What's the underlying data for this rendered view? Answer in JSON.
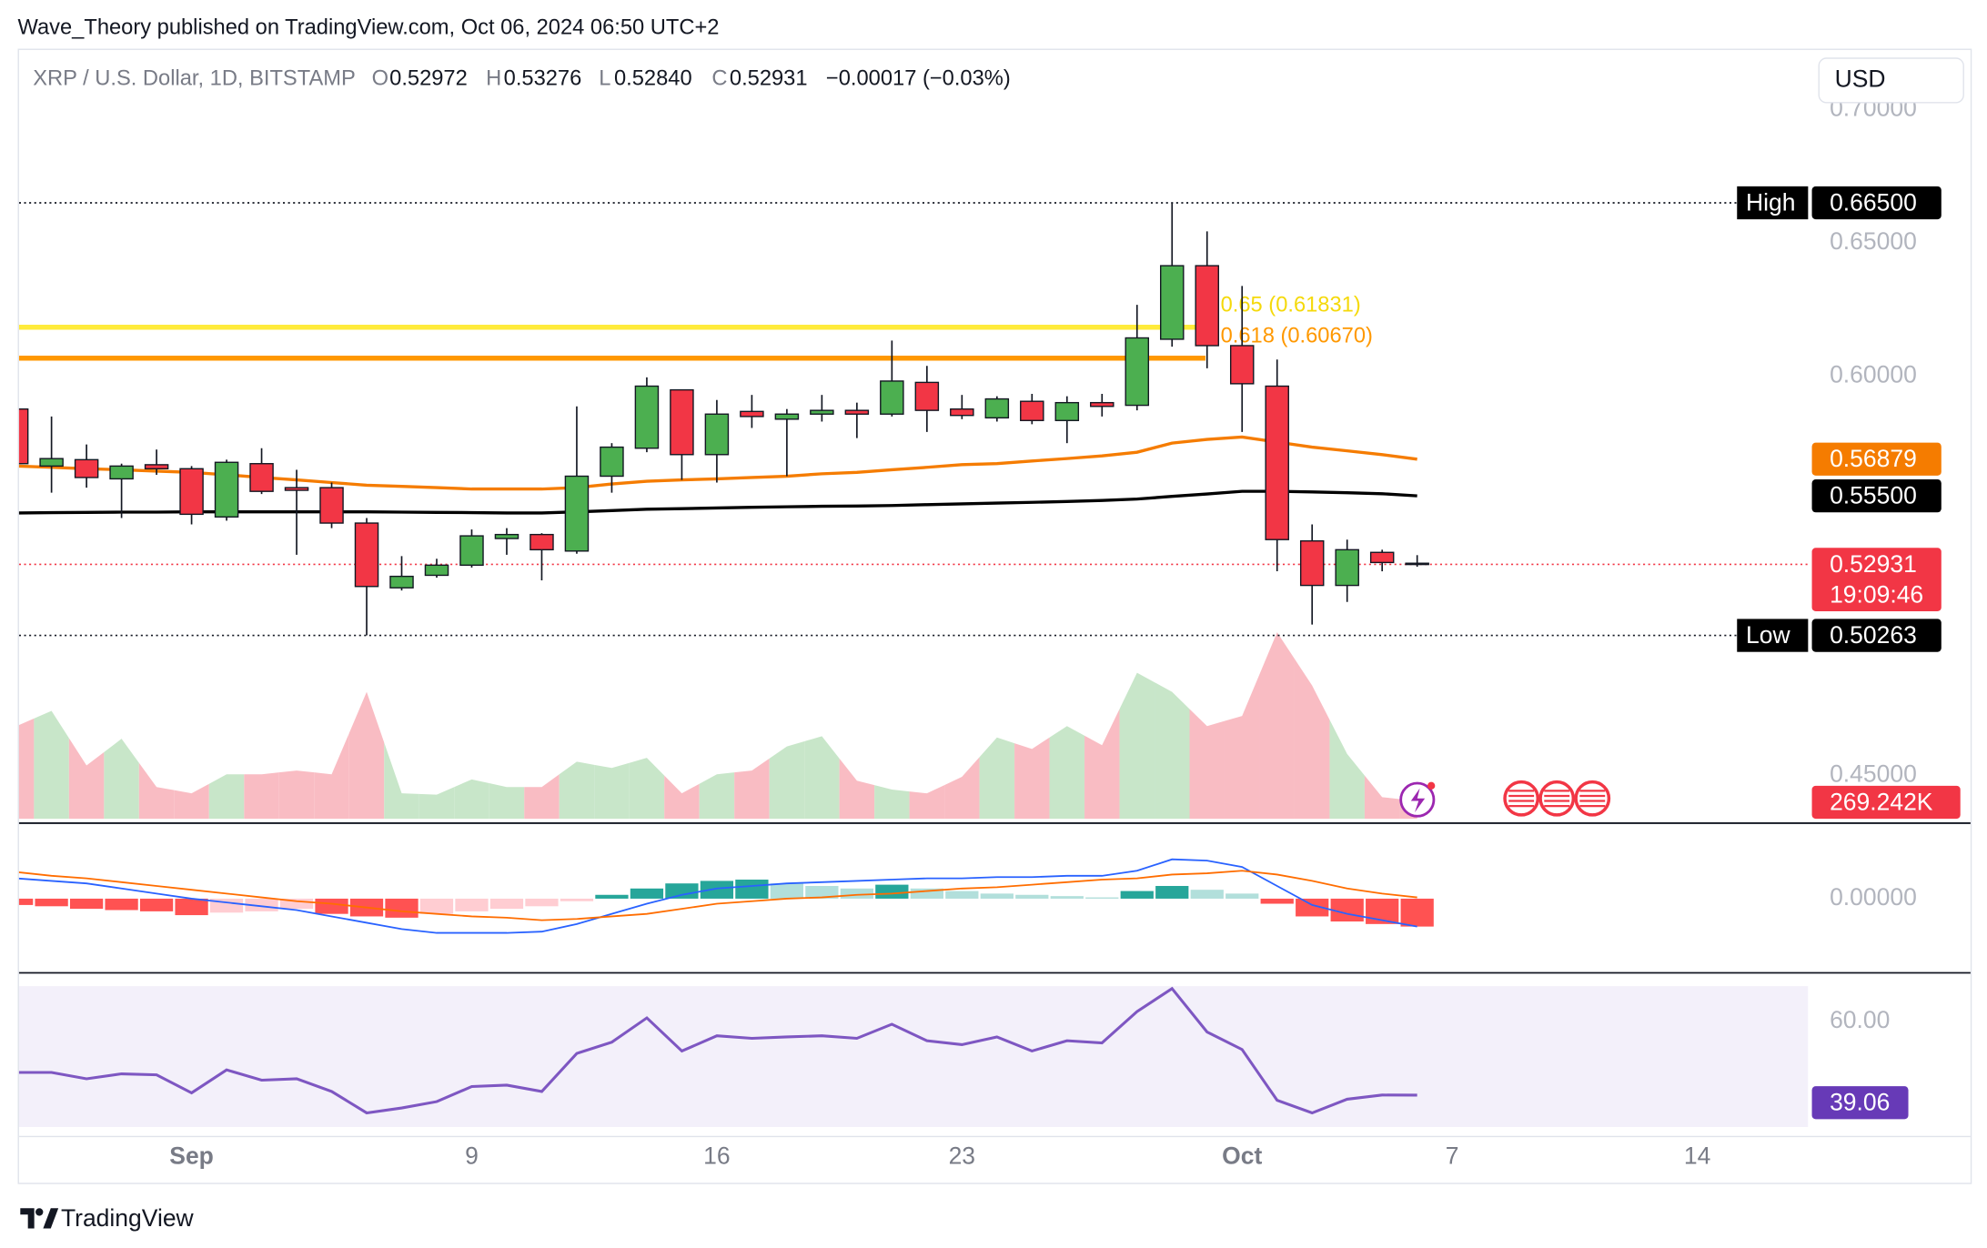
{
  "header": {
    "attribution": "Wave_Theory published on TradingView.com, Oct 06, 2024 06:50 UTC+2",
    "currency": "USD",
    "brand": "TradingView"
  },
  "chart_data": [
    {
      "type": "candlestick",
      "title": "XRP / U.S. Dollar, 1D, BITSTAMP",
      "legend": {
        "fields": [
          [
            "O",
            "0.52972"
          ],
          [
            "H",
            "0.53276"
          ],
          [
            "L",
            "0.52840"
          ],
          [
            "C",
            "0.52931"
          ]
        ],
        "change": "−0.00017 (−0.03%)"
      },
      "xlim": [
        0,
        51.2
      ],
      "xticks": [
        {
          "value": 5,
          "label": "Sep"
        },
        {
          "value": 13,
          "label": "9"
        },
        {
          "value": 20,
          "label": "16"
        },
        {
          "value": 27,
          "label": "23"
        },
        {
          "value": 35,
          "label": "Oct"
        },
        {
          "value": 41,
          "label": "7"
        },
        {
          "value": 48,
          "label": "14"
        }
      ],
      "ylim": [
        0.4324,
        0.7219
      ],
      "yticks": [
        {
          "value": 0.45,
          "label": "0.45000"
        },
        {
          "value": 0.6,
          "label": "0.60000"
        },
        {
          "value": 0.65,
          "label": "0.65000"
        },
        {
          "value": 0.7,
          "label": "0.70000"
        }
      ],
      "up_color": "#4caf50",
      "down_color": "#f23645",
      "open": [
        0.5876,
        0.5662,
        0.5686,
        0.5614,
        0.5667,
        0.5652,
        0.5471,
        0.5671,
        0.5581,
        0.5581,
        0.5448,
        0.5205,
        0.5252,
        0.529,
        0.539,
        0.5405,
        0.5343,
        0.5624,
        0.5729,
        0.5948,
        0.5705,
        0.5867,
        0.5838,
        0.5857,
        0.5871,
        0.5857,
        0.5976,
        0.5876,
        0.5843,
        0.5905,
        0.5833,
        0.59,
        0.589,
        0.6138,
        0.6414,
        0.6114,
        0.5962,
        0.5381,
        0.5214,
        0.5338,
        0.52972
      ],
      "high": [
        0.589,
        0.5848,
        0.5743,
        0.5671,
        0.5724,
        0.5662,
        0.5686,
        0.5729,
        0.5648,
        0.56,
        0.5467,
        0.5324,
        0.5314,
        0.5424,
        0.5429,
        0.541,
        0.5886,
        0.5748,
        0.5995,
        0.5948,
        0.591,
        0.5929,
        0.5876,
        0.5929,
        0.59,
        0.6133,
        0.6038,
        0.5929,
        0.5924,
        0.5933,
        0.5924,
        0.5933,
        0.6267,
        0.665,
        0.6543,
        0.6338,
        0.6062,
        0.5443,
        0.5386,
        0.5348,
        0.53276
      ],
      "low": [
        0.566,
        0.5562,
        0.5581,
        0.5467,
        0.5629,
        0.5443,
        0.5457,
        0.5557,
        0.5329,
        0.5429,
        0.50263,
        0.5195,
        0.5243,
        0.5281,
        0.5329,
        0.5233,
        0.5333,
        0.5562,
        0.5714,
        0.561,
        0.56,
        0.5805,
        0.5624,
        0.5829,
        0.5767,
        0.5848,
        0.579,
        0.5838,
        0.5829,
        0.5819,
        0.5748,
        0.5848,
        0.5871,
        0.611,
        0.6029,
        0.579,
        0.5267,
        0.5067,
        0.5152,
        0.5267,
        0.5284
      ],
      "close": [
        0.5671,
        0.569,
        0.5619,
        0.5662,
        0.5652,
        0.5481,
        0.5676,
        0.5567,
        0.5571,
        0.5448,
        0.521,
        0.5248,
        0.529,
        0.54,
        0.5405,
        0.5348,
        0.5624,
        0.5733,
        0.5962,
        0.5705,
        0.5857,
        0.5848,
        0.5857,
        0.5871,
        0.5857,
        0.5981,
        0.5871,
        0.5852,
        0.5914,
        0.5833,
        0.59,
        0.5886,
        0.6143,
        0.6414,
        0.6114,
        0.5971,
        0.5386,
        0.5214,
        0.5348,
        0.53,
        0.52931
      ],
      "countdown": "19:09:46",
      "series": [
        {
          "color": "#f57c00",
          "values": [
            0.5662,
            0.5657,
            0.5652,
            0.5648,
            0.5643,
            0.5638,
            0.5629,
            0.5619,
            0.561,
            0.56,
            0.559,
            0.5586,
            0.5581,
            0.5576,
            0.5576,
            0.5576,
            0.5581,
            0.5595,
            0.5605,
            0.561,
            0.5614,
            0.5619,
            0.5624,
            0.5633,
            0.5638,
            0.5648,
            0.5657,
            0.5667,
            0.5671,
            0.5681,
            0.569,
            0.57,
            0.5714,
            0.5748,
            0.5762,
            0.5771,
            0.5752,
            0.5733,
            0.5719,
            0.5705,
            0.56879
          ]
        },
        {
          "color": "#000000",
          "values": [
            0.5486,
            0.5487,
            0.5488,
            0.5489,
            0.5489,
            0.549,
            0.549,
            0.549,
            0.549,
            0.549,
            0.549,
            0.5489,
            0.5488,
            0.5487,
            0.5486,
            0.5486,
            0.549,
            0.5495,
            0.55,
            0.5502,
            0.5505,
            0.5507,
            0.5509,
            0.5511,
            0.5512,
            0.5514,
            0.5517,
            0.552,
            0.5523,
            0.5526,
            0.5529,
            0.5533,
            0.5538,
            0.5548,
            0.5557,
            0.5567,
            0.5567,
            0.5565,
            0.5562,
            0.5558,
            0.555
          ],
          "value_labels": [
            null,
            null,
            null,
            null,
            null,
            null,
            null,
            null,
            null,
            null,
            null,
            null,
            null,
            null,
            null,
            null,
            null,
            null,
            null,
            null,
            null,
            null,
            null,
            null,
            null,
            null,
            null,
            null,
            null,
            null,
            null,
            null,
            null,
            null,
            null,
            null,
            null,
            null,
            null,
            null,
            "0.55500"
          ]
        }
      ],
      "fib_levels": [
        {
          "label": "0.65 (0.61831)",
          "value": 0.61831,
          "color": "#ffeb3b",
          "text_color": "#f5d90a"
        },
        {
          "label": "0.618 (0.60670)",
          "value": 0.6067,
          "color": "#ff9800",
          "text_color": "#ff9800"
        }
      ],
      "levels": [
        {
          "label": "High",
          "value": 0.665,
          "value_label": "0.66500"
        },
        {
          "label": "Low",
          "value": 0.50263
        }
      ]
    },
    {
      "type": "volume",
      "up_color": "#c8e6c9",
      "down_color": "#f9bcc3",
      "label_color": "#f23645",
      "values": [
        1404000,
        1635000,
        808000,
        1212000,
        481000,
        385000,
        673000,
        673000,
        731000,
        673000,
        1923000,
        385000,
        365000,
        596000,
        481000,
        481000,
        865000,
        769000,
        923000,
        385000,
        673000,
        731000,
        1096000,
        1250000,
        577000,
        442000,
        385000,
        635000,
        1231000,
        1058000,
        1404000,
        1115000,
        2212000,
        1923000,
        1404000,
        1558000,
        2827000,
        2019000,
        981000,
        327000,
        269242
      ],
      "value_labels": [
        null,
        null,
        null,
        null,
        null,
        null,
        null,
        null,
        null,
        null,
        null,
        null,
        null,
        null,
        null,
        null,
        null,
        null,
        null,
        null,
        null,
        null,
        null,
        null,
        null,
        null,
        null,
        null,
        null,
        null,
        null,
        null,
        null,
        null,
        null,
        null,
        null,
        null,
        null,
        null,
        "269.242K"
      ]
    },
    {
      "type": "macd",
      "ylim": [
        -0.0285,
        0.029
      ],
      "yticks": [
        {
          "value": 0,
          "label": "0.00000"
        }
      ],
      "colors": {
        "up_strong": "#26a69a",
        "up_weak": "#b2dfdb",
        "down_strong": "#ff5252",
        "down_weak": "#ffcdd2"
      },
      "histogram": [
        -0.0025,
        -0.003,
        -0.004,
        -0.0045,
        -0.005,
        -0.0065,
        -0.0055,
        -0.005,
        -0.004,
        -0.006,
        -0.007,
        -0.0075,
        -0.006,
        -0.005,
        -0.004,
        -0.003,
        -0.001,
        0.0015,
        0.004,
        0.006,
        0.007,
        0.0075,
        0.006,
        0.005,
        0.004,
        0.0055,
        0.004,
        0.003,
        0.002,
        0.0015,
        0.001,
        0.0005,
        0.003,
        0.005,
        0.0035,
        0.002,
        -0.002,
        -0.007,
        -0.009,
        -0.01,
        -0.011
      ],
      "series": [
        {
          "color": "#2962ff",
          "values": [
            0.008,
            0.007,
            0.006,
            0.004,
            0.002,
            0,
            -0.0015,
            -0.003,
            -0.0045,
            -0.007,
            -0.0095,
            -0.012,
            -0.0135,
            -0.0135,
            -0.0135,
            -0.013,
            -0.01,
            -0.006,
            -0.002,
            0.0015,
            0.004,
            0.005,
            0.006,
            0.0065,
            0.007,
            0.0075,
            0.008,
            0.008,
            0.0085,
            0.0085,
            0.009,
            0.009,
            0.011,
            0.0155,
            0.015,
            0.0125,
            0.005,
            -0.0025,
            -0.006,
            -0.0085,
            -0.011
          ]
        },
        {
          "color": "#ff6d00",
          "values": [
            0.0105,
            0.009,
            0.008,
            0.0065,
            0.005,
            0.0035,
            0.002,
            0.0005,
            -0.001,
            -0.002,
            -0.0035,
            -0.005,
            -0.006,
            -0.007,
            -0.0075,
            -0.0085,
            -0.008,
            -0.007,
            -0.006,
            -0.004,
            -0.002,
            -0.001,
            0,
            0.0005,
            0.0015,
            0.002,
            0.003,
            0.004,
            0.0045,
            0.0055,
            0.0065,
            0.0075,
            0.008,
            0.0095,
            0.01,
            0.011,
            0.0095,
            0.007,
            0.004,
            0.002,
            0.0005
          ]
        }
      ]
    },
    {
      "type": "line",
      "ylim": [
        27.48,
        73.24
      ],
      "yticks": [
        {
          "value": 60,
          "label": "60.00"
        }
      ],
      "band": [
        30,
        70
      ],
      "band_color": "#f3f0fa",
      "color": "#7e57c2",
      "label_color": "#673ab7",
      "values": [
        45.5,
        45.5,
        43.7,
        45.1,
        44.8,
        39.7,
        46.2,
        43.3,
        43.7,
        40.1,
        34,
        35.4,
        37.2,
        41.5,
        41.9,
        40.1,
        50.9,
        54.1,
        61,
        51.6,
        55.9,
        55.2,
        55.6,
        55.9,
        55.2,
        59.2,
        54.5,
        53.4,
        55.6,
        51.6,
        54.5,
        53.9,
        62.8,
        69.3,
        57,
        52,
        37.6,
        34,
        37.9,
        39.1,
        39.06
      ]
    }
  ]
}
